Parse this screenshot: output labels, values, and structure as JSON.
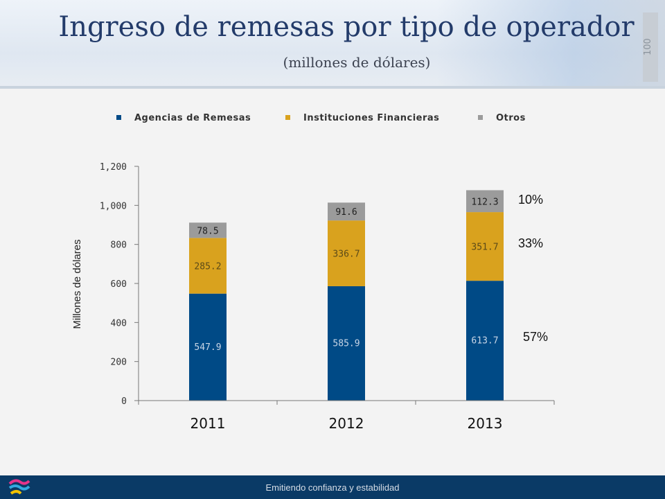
{
  "slide": {
    "title": "Ingreso de remesas por tipo de operador",
    "subtitle": "(millones de dólares)",
    "badge_text": "100",
    "footer_text": "Emitiendo confianza y estabilidad"
  },
  "chart_data": {
    "type": "bar",
    "stacked": true,
    "categories": [
      "2011",
      "2012",
      "2013"
    ],
    "series": [
      {
        "name": "Agencias de Remesas",
        "values": [
          547.9,
          585.9,
          613.7
        ],
        "color": "#004a86"
      },
      {
        "name": "Instituciones Financieras",
        "values": [
          285.2,
          336.7,
          351.7
        ],
        "color": "#d9a21e"
      },
      {
        "name": "Otros",
        "values": [
          78.5,
          91.6,
          112.3
        ],
        "color": "#9b9b9b"
      }
    ],
    "data_labels": [
      [
        "547.9",
        "585.9",
        "613.7"
      ],
      [
        "285.2",
        "336.7",
        "351.7"
      ],
      [
        "78.5",
        "91.6",
        "112.3"
      ]
    ],
    "ylabel": "Millones de dólares",
    "ylim": [
      0,
      1200
    ],
    "yticks": [
      0,
      200,
      400,
      600,
      800,
      1000,
      1200
    ],
    "ytick_labels": [
      "0",
      "200",
      "400",
      "600",
      "800",
      "1,000",
      "1,200"
    ],
    "legend_position": "top",
    "grid": false,
    "annotations": [
      "10%",
      "33%",
      "57%"
    ]
  }
}
